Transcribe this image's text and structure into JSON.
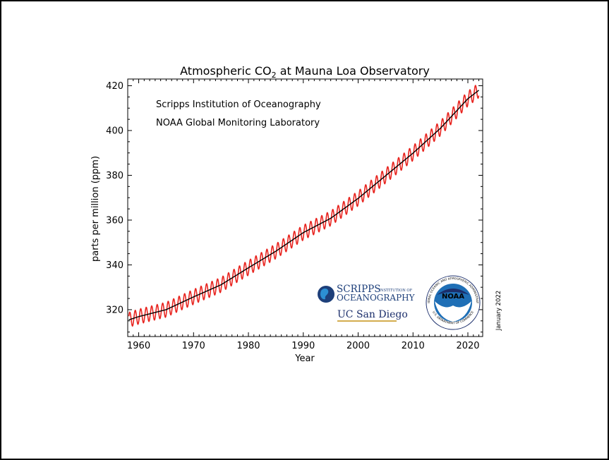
{
  "chart_data": {
    "type": "line",
    "title_main": "Atmospheric CO",
    "title_sub": "2",
    "title_rest": " at Mauna Loa Observatory",
    "xlabel": "Year",
    "ylabel": "parts per million (ppm)",
    "xlim": [
      1958,
      2022.7
    ],
    "ylim": [
      308,
      423
    ],
    "xticks": [
      1960,
      1970,
      1980,
      1990,
      2000,
      2010,
      2020
    ],
    "yticks": [
      320,
      340,
      360,
      380,
      400,
      420
    ],
    "annotations": [
      "Scripps Institution of Oceanography",
      "NOAA Global Monitoring Laboratory"
    ],
    "date_note": "January 2022",
    "grid": false,
    "series": [
      {
        "key": "monthly",
        "color": "#e8241f",
        "seasonal_amplitude_ppm": 3.3,
        "x": [
          1958,
          1960,
          1965,
          1970,
          1975,
          1980,
          1985,
          1990,
          1995,
          2000,
          2005,
          2010,
          2015,
          2020,
          2022
        ],
        "values": [
          315.3,
          316.9,
          320.0,
          325.7,
          331.1,
          338.7,
          346.1,
          354.4,
          360.8,
          369.7,
          379.8,
          389.9,
          401.0,
          414.2,
          418.0
        ]
      },
      {
        "key": "trend",
        "color": "#000000",
        "x": [
          1958,
          1960,
          1965,
          1970,
          1975,
          1980,
          1985,
          1990,
          1995,
          2000,
          2005,
          2010,
          2015,
          2020,
          2022
        ],
        "values": [
          315.3,
          316.9,
          320.0,
          325.7,
          331.1,
          338.7,
          346.1,
          354.4,
          360.8,
          369.7,
          379.8,
          389.9,
          401.0,
          414.2,
          418.0
        ]
      }
    ]
  },
  "logos": {
    "scripps_line1": "SCRIPPS",
    "scripps_line1b": "INSTITUTION OF",
    "scripps_line2": "OCEANOGRAPHY",
    "ucsd": "UC San Diego",
    "noaa": "NOAA",
    "noaa_ring_top": "NATIONAL OCEANIC AND ATMOSPHERIC ADMINISTRATION",
    "noaa_ring_bottom": "U.S. DEPARTMENT OF COMMERCE",
    "scripps_color": "#1d3f7a",
    "noaa_blue": "#1f6fb6",
    "noaa_navy": "#1b2e6b"
  }
}
